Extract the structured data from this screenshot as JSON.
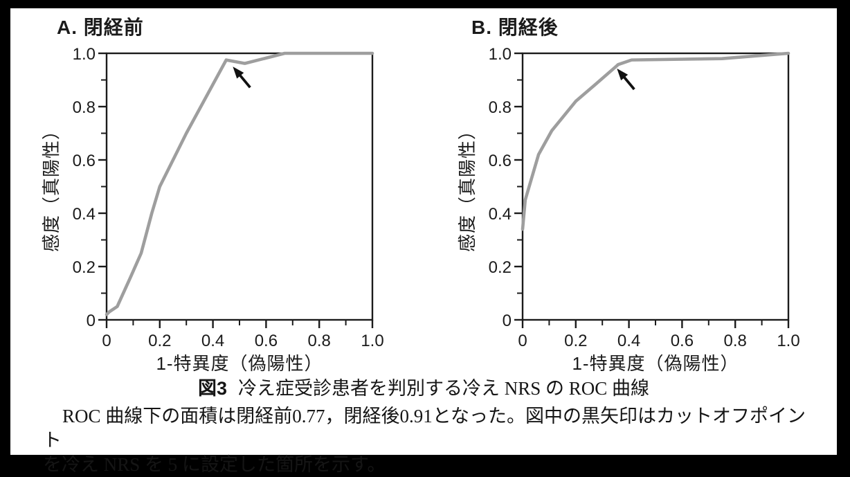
{
  "caption": {
    "label": "図3",
    "title": "冷え症受診患者を判別する冷え NRS の ROC 曲線",
    "body_line1": "ROC 曲線下の面積は閉経前0.77，閉経後0.91となった。図中の黒矢印はカットオフポイント",
    "body_line2": "を冷え NRS を 5 に設定した箇所を示す。"
  },
  "chart_data": [
    {
      "type": "line",
      "title": "A. 閉経前",
      "xlabel": "1-特異度（偽陽性）",
      "ylabel": "感度（真陽性）",
      "xlim": [
        0,
        1
      ],
      "ylim": [
        0,
        1
      ],
      "grid": false,
      "auc": 0.77,
      "cutoff_nrs": 5,
      "xticks": [
        0,
        0.2,
        0.4,
        0.6,
        0.8,
        1.0
      ],
      "xtick_labels": [
        "0",
        "0.2",
        "0.4",
        "0.6",
        "0.8",
        "1.0"
      ],
      "xticks_minor": [
        0.1,
        0.3,
        0.5,
        0.7,
        0.9
      ],
      "yticks": [
        0,
        0.2,
        0.4,
        0.6,
        0.8,
        1.0
      ],
      "ytick_labels": [
        "0",
        "0.2",
        "0.4",
        "0.6",
        "0.8",
        "1.0"
      ],
      "yticks_minor": [
        0.1,
        0.3,
        0.5,
        0.7,
        0.9
      ],
      "line_color": "#9e9e9e",
      "axis_color": "#1b1b1b",
      "arrow_color": "#111111",
      "series": [
        {
          "name": "ROC曲線（閉経前）",
          "x": [
            0,
            0.01,
            0.04,
            0.09,
            0.13,
            0.17,
            0.2,
            0.3,
            0.45,
            0.52,
            0.67,
            1.0
          ],
          "y": [
            0.02,
            0.03,
            0.05,
            0.16,
            0.25,
            0.4,
            0.5,
            0.7,
            0.975,
            0.962,
            1.0,
            1.0
          ]
        }
      ],
      "annotation": {
        "name": "cutoff-arrow",
        "tip": [
          0.475,
          0.95
        ],
        "tail": [
          0.54,
          0.872
        ]
      }
    },
    {
      "type": "line",
      "title": "B. 閉経後",
      "xlabel": "1-特異度（偽陽性）",
      "ylabel": "感度（真陽性）",
      "xlim": [
        0,
        1
      ],
      "ylim": [
        0,
        1
      ],
      "grid": false,
      "auc": 0.91,
      "cutoff_nrs": 5,
      "xticks": [
        0,
        0.2,
        0.4,
        0.6,
        0.8,
        1.0
      ],
      "xtick_labels": [
        "0",
        "0.2",
        "0.4",
        "0.6",
        "0.8",
        "1.0"
      ],
      "xticks_minor": [
        0.1,
        0.3,
        0.5,
        0.7,
        0.9
      ],
      "yticks": [
        0,
        0.2,
        0.4,
        0.6,
        0.8,
        1.0
      ],
      "ytick_labels": [
        "0",
        "0.2",
        "0.4",
        "0.6",
        "0.8",
        "1.0"
      ],
      "yticks_minor": [
        0.1,
        0.3,
        0.5,
        0.7,
        0.9
      ],
      "line_color": "#9e9e9e",
      "axis_color": "#1b1b1b",
      "arrow_color": "#111111",
      "series": [
        {
          "name": "ROC曲線（閉経後）",
          "x": [
            0,
            0.01,
            0.06,
            0.11,
            0.2,
            0.27,
            0.36,
            0.41,
            0.75,
            1.0
          ],
          "y": [
            0.34,
            0.45,
            0.62,
            0.71,
            0.82,
            0.88,
            0.958,
            0.975,
            0.98,
            1.0
          ]
        }
      ],
      "annotation": {
        "name": "cutoff-arrow",
        "tip": [
          0.355,
          0.943
        ],
        "tail": [
          0.42,
          0.865
        ]
      }
    }
  ]
}
